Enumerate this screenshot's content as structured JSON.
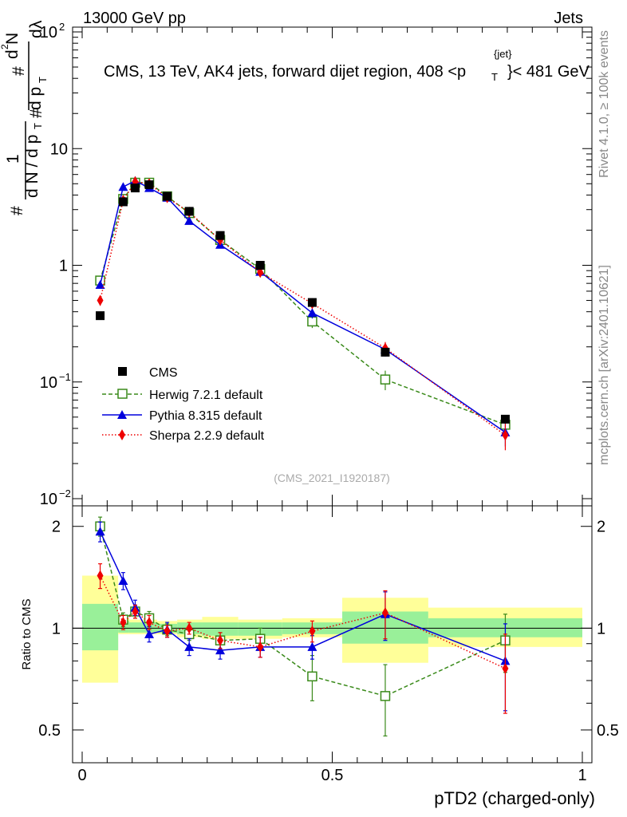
{
  "header": {
    "left": "13000 GeV pp",
    "right": "Jets"
  },
  "side_labels": {
    "rivet": "Rivet 4.1.0, ≥ 100k events",
    "mcplots": "mcplots.cern.ch [arXiv:2401.10621]"
  },
  "y_axis_title": {
    "hash1": "#",
    "one": "1",
    "dN": "d N / d p",
    "T1": "T",
    "hash2": "#",
    "dp": "d p",
    "T2": "T",
    "hash3": "#",
    "d2N": "d",
    "two": "2",
    "N": "N",
    "dlambda": "d",
    "lambda": "λ"
  },
  "ratio_ylabel": "Ratio to CMS",
  "colors": {
    "cms": "#000000",
    "herwig": "#3a8a1a",
    "pythia": "#0000dd",
    "sherpa": "#ee0000",
    "band_inner": "#99f099",
    "band_outer": "#ffff99"
  },
  "chart_data": [
    {
      "type": "scatter",
      "panel": "main",
      "title": "CMS, 13 TeV, AK4 jets, forward dijet region, 408 <p",
      "title_sup": "{jet}",
      "title_sub": "T",
      "title_end": "}< 481 GeV",
      "watermark": "(CMS_2021_I1920187)",
      "xlabel": "pTD2 (charged-only)",
      "xlim": [
        0,
        1
      ],
      "ylim": [
        0.01,
        100
      ],
      "yscale": "log",
      "y_ticks": [
        {
          "value": 0.01,
          "base": "10",
          "exp": "−2"
        },
        {
          "value": 0.1,
          "base": "10",
          "exp": "−1"
        },
        {
          "value": 1,
          "base": "1",
          "exp": ""
        },
        {
          "value": 10,
          "base": "10",
          "exp": ""
        },
        {
          "value": 100,
          "base": "10",
          "exp": "2"
        }
      ],
      "x": [
        0.036,
        0.082,
        0.106,
        0.134,
        0.17,
        0.214,
        0.276,
        0.356,
        0.46,
        0.606,
        0.846
      ],
      "series": [
        {
          "name": "CMS",
          "key": "cms",
          "marker": "square-filled",
          "line": "none",
          "values": [
            0.37,
            3.5,
            4.6,
            4.9,
            3.9,
            2.9,
            1.8,
            1.0,
            0.48,
            0.18,
            0.048
          ],
          "errors": [
            0.01,
            0.1,
            0.1,
            0.1,
            0.1,
            0.06,
            0.04,
            0.02,
            0.01,
            0.01,
            0.003
          ]
        },
        {
          "name": "Herwig 7.2.1 default",
          "key": "herwig",
          "marker": "square-open",
          "line": "dashed",
          "values": [
            0.74,
            3.7,
            5.1,
            5.1,
            3.9,
            2.8,
            1.65,
            0.93,
            0.33,
            0.105,
            0.043
          ],
          "errors": [
            0.05,
            0.2,
            0.2,
            0.2,
            0.15,
            0.12,
            0.08,
            0.05,
            0.04,
            0.02,
            0.008
          ]
        },
        {
          "name": "Pythia 8.315 default",
          "key": "pythia",
          "marker": "triangle-filled",
          "line": "solid",
          "values": [
            0.68,
            4.7,
            5.3,
            4.6,
            3.8,
            2.4,
            1.5,
            0.88,
            0.39,
            0.19,
            0.037
          ],
          "errors": [
            0.05,
            0.3,
            0.3,
            0.2,
            0.15,
            0.12,
            0.08,
            0.05,
            0.04,
            0.025,
            0.009
          ]
        },
        {
          "name": "Sherpa 2.2.9 default",
          "key": "sherpa",
          "marker": "diamond-filled",
          "line": "dotted",
          "values": [
            0.5,
            3.6,
            5.2,
            5.0,
            3.8,
            2.85,
            1.65,
            0.87,
            0.47,
            0.195,
            0.035
          ],
          "errors": [
            0.05,
            0.2,
            0.25,
            0.2,
            0.15,
            0.12,
            0.08,
            0.05,
            0.04,
            0.025,
            0.009
          ]
        }
      ]
    },
    {
      "type": "scatter",
      "panel": "ratio",
      "ylabel": "Ratio to CMS",
      "xlim": [
        0,
        1
      ],
      "ylim": [
        0.4,
        2.3
      ],
      "yscale": "log",
      "x_ticks": [
        {
          "value": 0,
          "label": "0"
        },
        {
          "value": 0.5,
          "label": "0.5"
        },
        {
          "value": 1,
          "label": "1"
        }
      ],
      "y_ticks": [
        {
          "value": 0.5,
          "label": "0.5"
        },
        {
          "value": 1,
          "label": "1"
        },
        {
          "value": 2,
          "label": "2"
        }
      ],
      "bands": [
        {
          "x0": 0.0,
          "x1": 0.072,
          "inner": [
            0.86,
            1.18
          ],
          "outer": [
            0.69,
            1.43
          ]
        },
        {
          "x0": 0.072,
          "x1": 0.094,
          "inner": [
            0.97,
            1.05
          ],
          "outer": [
            0.96,
            1.07
          ]
        },
        {
          "x0": 0.094,
          "x1": 0.118,
          "inner": [
            0.97,
            1.04
          ],
          "outer": [
            0.96,
            1.06
          ]
        },
        {
          "x0": 0.118,
          "x1": 0.15,
          "inner": [
            0.97,
            1.04
          ],
          "outer": [
            0.96,
            1.06
          ]
        },
        {
          "x0": 0.15,
          "x1": 0.19,
          "inner": [
            0.97,
            1.03
          ],
          "outer": [
            0.96,
            1.05
          ]
        },
        {
          "x0": 0.19,
          "x1": 0.24,
          "inner": [
            0.96,
            1.04
          ],
          "outer": [
            0.94,
            1.06
          ]
        },
        {
          "x0": 0.24,
          "x1": 0.312,
          "inner": [
            0.95,
            1.04
          ],
          "outer": [
            0.93,
            1.08
          ]
        },
        {
          "x0": 0.312,
          "x1": 0.4,
          "inner": [
            0.95,
            1.04
          ],
          "outer": [
            0.93,
            1.06
          ]
        },
        {
          "x0": 0.4,
          "x1": 0.52,
          "inner": [
            0.96,
            1.04
          ],
          "outer": [
            0.94,
            1.07
          ]
        },
        {
          "x0": 0.52,
          "x1": 0.692,
          "inner": [
            0.9,
            1.12
          ],
          "outer": [
            0.79,
            1.23
          ]
        },
        {
          "x0": 0.692,
          "x1": 1.0,
          "inner": [
            0.94,
            1.07
          ],
          "outer": [
            0.88,
            1.15
          ]
        }
      ],
      "series": [
        {
          "name": "Herwig 7.2.1 default",
          "key": "herwig",
          "values": [
            2.0,
            1.06,
            1.12,
            1.07,
            0.99,
            0.96,
            0.92,
            0.93,
            0.72,
            0.63,
            0.92
          ],
          "errors": [
            0.13,
            0.05,
            0.05,
            0.05,
            0.04,
            0.04,
            0.05,
            0.07,
            0.11,
            0.15,
            0.18
          ]
        },
        {
          "name": "Pythia 8.315 default",
          "key": "pythia",
          "values": [
            1.93,
            1.38,
            1.15,
            0.96,
            0.99,
            0.88,
            0.86,
            0.88,
            0.88,
            1.1,
            0.8
          ],
          "errors": [
            0.13,
            0.08,
            0.06,
            0.05,
            0.05,
            0.05,
            0.05,
            0.06,
            0.07,
            0.18,
            0.23
          ]
        },
        {
          "name": "Sherpa 2.2.9 default",
          "key": "sherpa",
          "values": [
            1.43,
            1.04,
            1.12,
            1.04,
            0.98,
            1.0,
            0.92,
            0.88,
            0.98,
            1.11,
            0.76
          ],
          "errors": [
            0.12,
            0.05,
            0.05,
            0.05,
            0.04,
            0.04,
            0.05,
            0.06,
            0.07,
            0.18,
            0.2
          ]
        }
      ]
    }
  ]
}
